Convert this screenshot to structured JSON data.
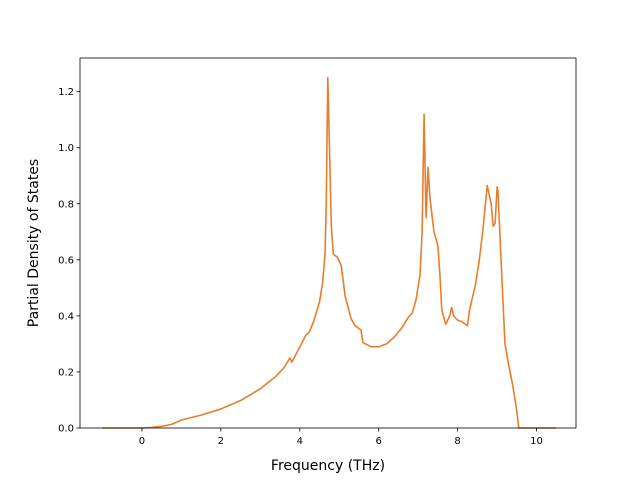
{
  "chart_data": {
    "type": "line",
    "title": "",
    "xlabel": "Frequency (THz)",
    "ylabel": "Partial Density of States",
    "xlim": [
      -1.57,
      11.0
    ],
    "ylim": [
      0.0,
      1.32
    ],
    "xticks": [
      0,
      2,
      4,
      6,
      8,
      10
    ],
    "yticks": [
      0.0,
      0.2,
      0.4,
      0.6,
      0.8,
      1.0,
      1.2
    ],
    "xtick_labels": [
      "0",
      "2",
      "4",
      "6",
      "8",
      "10"
    ],
    "ytick_labels": [
      "0.0",
      "0.2",
      "0.4",
      "0.6",
      "0.8",
      "1.0",
      "1.2"
    ],
    "grid": false,
    "legend": "none",
    "series": [
      {
        "color": "#e87e2b",
        "x": [
          -1.0,
          -0.5,
          0.0,
          0.25,
          0.5,
          0.75,
          1.0,
          1.1,
          1.5,
          2.0,
          2.5,
          3.0,
          3.4,
          3.6,
          3.75,
          3.8,
          3.95,
          4.15,
          4.25,
          4.35,
          4.5,
          4.58,
          4.64,
          4.67,
          4.71,
          4.8,
          4.85,
          4.95,
          5.05,
          5.15,
          5.3,
          5.4,
          5.45,
          5.55,
          5.6,
          5.8,
          6.0,
          6.2,
          6.4,
          6.6,
          6.75,
          6.85,
          6.95,
          7.05,
          7.1,
          7.15,
          7.2,
          7.25,
          7.3,
          7.4,
          7.5,
          7.55,
          7.6,
          7.7,
          7.8,
          7.85,
          7.9,
          8.0,
          8.1,
          8.2,
          8.25,
          8.3,
          8.35,
          8.45,
          8.55,
          8.65,
          8.75,
          8.85,
          8.9,
          8.95,
          9.0,
          9.02,
          9.1,
          9.2,
          9.3,
          9.4,
          9.5,
          9.55,
          9.6,
          10.0,
          10.5
        ],
        "y": [
          0.0,
          0.0,
          0.0,
          0.002,
          0.006,
          0.013,
          0.028,
          0.032,
          0.046,
          0.068,
          0.098,
          0.14,
          0.185,
          0.215,
          0.25,
          0.235,
          0.275,
          0.33,
          0.345,
          0.38,
          0.45,
          0.52,
          0.62,
          0.8,
          1.25,
          0.72,
          0.62,
          0.61,
          0.58,
          0.47,
          0.39,
          0.365,
          0.36,
          0.35,
          0.305,
          0.29,
          0.29,
          0.3,
          0.325,
          0.36,
          0.395,
          0.41,
          0.46,
          0.55,
          0.7,
          1.12,
          0.75,
          0.93,
          0.82,
          0.7,
          0.65,
          0.55,
          0.42,
          0.37,
          0.4,
          0.43,
          0.4,
          0.385,
          0.38,
          0.37,
          0.365,
          0.42,
          0.45,
          0.51,
          0.6,
          0.72,
          0.865,
          0.8,
          0.72,
          0.73,
          0.86,
          0.85,
          0.6,
          0.3,
          0.22,
          0.15,
          0.06,
          0.0,
          0.0,
          0.0,
          0.0
        ]
      }
    ]
  }
}
